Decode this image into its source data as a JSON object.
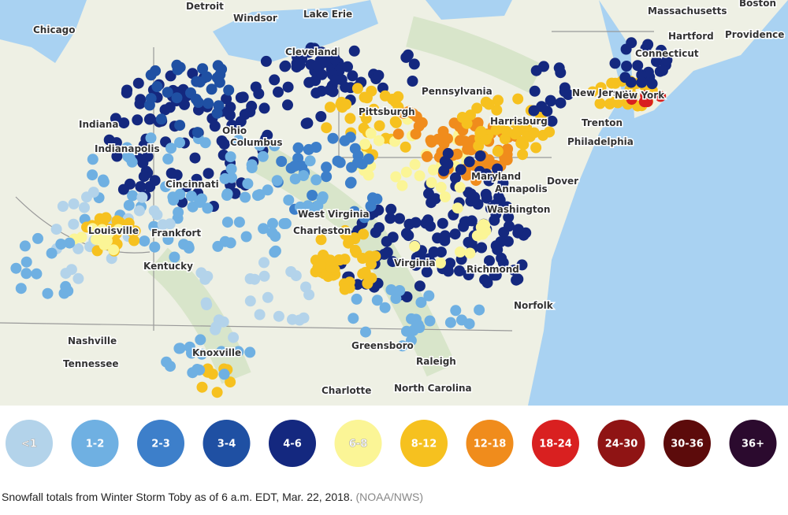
{
  "map": {
    "places": [
      "Chicago",
      "Detroit",
      "Windsor",
      "Lake Erie",
      "Cleveland",
      "Massachusetts",
      "Boston",
      "Hartford",
      "Providence",
      "Connecticut",
      "Pennsylvania",
      "Pittsburgh",
      "Harrisburg",
      "New Jersey",
      "New York",
      "Trenton",
      "Philadelphia",
      "Indiana",
      "Ohio",
      "Columbus",
      "Indianapolis",
      "Cincinnati",
      "Maryland",
      "Dover",
      "Annapolis",
      "Washington",
      "West Virginia",
      "Charleston",
      "Louisville",
      "Frankfort",
      "Kentucky",
      "Virginia",
      "Richmond",
      "Norfolk",
      "Nashville",
      "Tennessee",
      "Knoxville",
      "Greensboro",
      "Raleigh",
      "Charlotte",
      "North Carolina"
    ],
    "legend": [
      "<1",
      "1-2",
      "2-3",
      "3-4",
      "4-6",
      "6-8",
      "8-12",
      "12-18",
      "18-24",
      "24-30",
      "30-36",
      "36+"
    ],
    "legend_colors": [
      "#b3d3ea",
      "#6fb0e2",
      "#3d7fca",
      "#1f50a3",
      "#14287f",
      "#fbf596",
      "#f6c11f",
      "#f08c1c",
      "#d92020",
      "#8f1414",
      "#5c0b0b",
      "#2b0a2e"
    ]
  },
  "caption": {
    "text": "Snowfall totals from Winter Storm Toby as of 6 a.m. EDT, Mar. 22, 2018.",
    "credit": "(NOAA/NWS)"
  }
}
